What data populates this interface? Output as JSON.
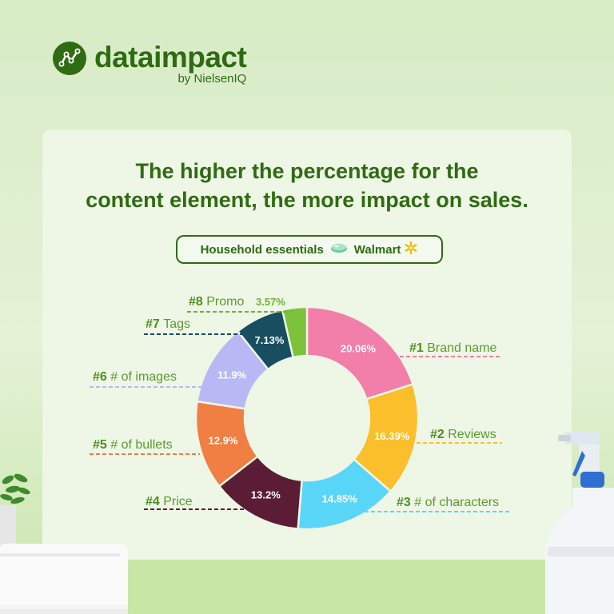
{
  "brand": {
    "name": "dataimpact",
    "sub": "by NielsenIQ"
  },
  "headline": {
    "line1": "The higher the percentage for the",
    "line2": "content element, the more impact on sales."
  },
  "pill": {
    "category": "Household essentials",
    "retailer": "Walmart"
  },
  "chart_data": {
    "type": "pie",
    "categories": [
      "#1 Brand name",
      "#2 Reviews",
      "#3 # of characters",
      "#4 Price",
      "#5 # of bullets",
      "#6 # of images",
      "#7 Tags",
      "#8 Promo"
    ],
    "values": [
      20.06,
      16.39,
      14.85,
      13.2,
      12.9,
      11.9,
      7.13,
      3.57
    ],
    "slices": [
      {
        "rank": "#1",
        "name": "Brand name",
        "value": 20.06,
        "label": "20.06%",
        "color": "#f27eaa",
        "text_color": "#ffffff",
        "line_color": "#f27eaa"
      },
      {
        "rank": "#2",
        "name": "Reviews",
        "value": 16.39,
        "label": "16.39%",
        "color": "#fbbf2b",
        "text_color": "#ffffff",
        "line_color": "#fbbf2b"
      },
      {
        "rank": "#3",
        "name": "# of characters",
        "value": 14.85,
        "label": "14.85%",
        "color": "#59d6f7",
        "text_color": "#ffffff",
        "line_color": "#59d6f7"
      },
      {
        "rank": "#4",
        "name": "Price",
        "value": 13.2,
        "label": "13.2%",
        "color": "#5b1d35",
        "text_color": "#ffffff",
        "line_color": "#5b1d35"
      },
      {
        "rank": "#5",
        "name": "# of bullets",
        "value": 12.9,
        "label": "12.9%",
        "color": "#f17e42",
        "text_color": "#ffffff",
        "line_color": "#f17e42"
      },
      {
        "rank": "#6",
        "name": "# of images",
        "value": 11.9,
        "label": "11.9%",
        "color": "#b7b8f4",
        "text_color": "#ffffff",
        "line_color": "#b7b8f4"
      },
      {
        "rank": "#7",
        "name": "Tags",
        "value": 7.13,
        "label": "7.13%",
        "color": "#174e60",
        "text_color": "#ffffff",
        "line_color": "#174e60"
      },
      {
        "rank": "#8",
        "name": "Promo",
        "value": 3.57,
        "label": "3.57%",
        "color": "#7dc23a",
        "text_color": "#6fb236",
        "line_color": "#6fb236"
      }
    ],
    "rank_color": "#4e8f1e",
    "name_color": "#5b9b2f"
  }
}
